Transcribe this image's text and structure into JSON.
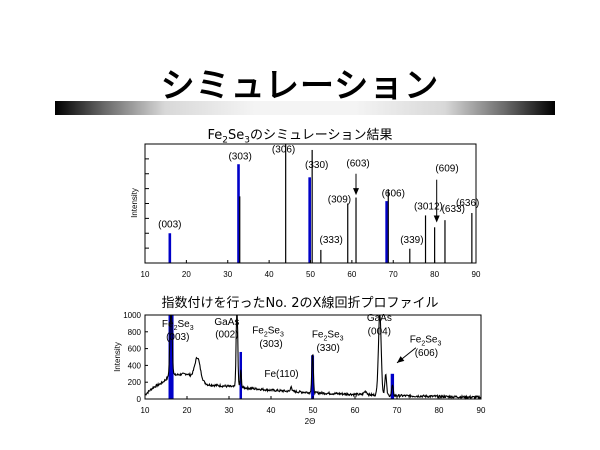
{
  "slide": {
    "title": "シミュレーション",
    "chart1_caption_pre": "Fe",
    "chart1_caption_sub1": "2",
    "chart1_caption_mid": "Se",
    "chart1_caption_sub2": "3",
    "chart1_caption_post": "のシミュレーション結果",
    "chart2_caption": "指数付けを行ったNo. 2のX線回折プロファイル"
  },
  "colors": {
    "peak_highlight": "#0000c8",
    "trace": "#000000"
  },
  "chart_data": [
    {
      "type": "bar",
      "title": "Fe2Se3のシミュレーション結果",
      "ylabel": "Intensity",
      "xlabel": "",
      "xlim": [
        10,
        90
      ],
      "x_ticks": [
        10,
        20,
        30,
        40,
        50,
        60,
        70,
        80,
        90
      ],
      "ylim": [
        0,
        100
      ],
      "grid": false,
      "peaks": [
        {
          "x": 16.0,
          "y": 25,
          "hl": true
        },
        {
          "x": 32.6,
          "y": 83,
          "hl": true
        },
        {
          "x": 32.9,
          "y": 56,
          "hl": false
        },
        {
          "x": 44.0,
          "y": 100,
          "hl": false
        },
        {
          "x": 49.8,
          "y": 72,
          "hl": true
        },
        {
          "x": 50.4,
          "y": 95,
          "hl": false
        },
        {
          "x": 52.5,
          "y": 11,
          "hl": false
        },
        {
          "x": 59.0,
          "y": 50,
          "hl": false
        },
        {
          "x": 61.0,
          "y": 55,
          "hl": false
        },
        {
          "x": 68.4,
          "y": 52,
          "hl": true
        },
        {
          "x": 68.8,
          "y": 62,
          "hl": false
        },
        {
          "x": 74.0,
          "y": 12,
          "hl": false
        },
        {
          "x": 77.8,
          "y": 40,
          "hl": false
        },
        {
          "x": 80.0,
          "y": 30,
          "hl": false
        },
        {
          "x": 82.5,
          "y": 36,
          "hl": false
        },
        {
          "x": 89.0,
          "y": 42,
          "hl": false
        }
      ],
      "annotations": [
        {
          "text": "(003)",
          "x": 16.0,
          "y": 30
        },
        {
          "text": "(303)",
          "x": 33.0,
          "y": 87
        },
        {
          "text": "(306)",
          "x": 43.5,
          "y": 93
        },
        {
          "text": "(330)",
          "x": 51.5,
          "y": 80
        },
        {
          "text": "(309)",
          "x": 57.0,
          "y": 51
        },
        {
          "text": "(603)",
          "x": 61.5,
          "y": 81
        },
        {
          "text": "(606)",
          "x": 70.0,
          "y": 56
        },
        {
          "text": "(333)",
          "x": 55.0,
          "y": 17
        },
        {
          "text": "(339)",
          "x": 74.5,
          "y": 17
        },
        {
          "text": "(3012)",
          "x": 78.5,
          "y": 45
        },
        {
          "text": "(609)",
          "x": 83.0,
          "y": 77
        },
        {
          "text": "(633)",
          "x": 84.5,
          "y": 43
        },
        {
          "text": "(636)",
          "x": 88.0,
          "y": 48
        }
      ],
      "arrows": [
        {
          "from": [
            61.0,
            75
          ],
          "to": [
            61.0,
            57
          ]
        },
        {
          "from": [
            80.5,
            70
          ],
          "to": [
            80.5,
            34
          ]
        }
      ]
    },
    {
      "type": "line",
      "title": "指数付けを行ったNo. 2のX線回折プロファイル",
      "xlabel": "2Θ",
      "ylabel": "Intensity",
      "xlim": [
        10,
        90
      ],
      "x_ticks": [
        10,
        20,
        30,
        40,
        50,
        60,
        70,
        80,
        90
      ],
      "ylim": [
        0,
        1000
      ],
      "y_ticks": [
        0,
        200,
        400,
        600,
        800,
        1000
      ],
      "grid": false,
      "background": [
        [
          10,
          50
        ],
        [
          12,
          140
        ],
        [
          14,
          190
        ],
        [
          16,
          280
        ],
        [
          20,
          300
        ],
        [
          25,
          170
        ],
        [
          30,
          150
        ],
        [
          40,
          105
        ],
        [
          50,
          75
        ],
        [
          60,
          55
        ],
        [
          70,
          40
        ],
        [
          80,
          30
        ],
        [
          90,
          20
        ]
      ],
      "peaks": [
        {
          "c": 16.2,
          "a": 850,
          "w": 0.35
        },
        {
          "c": 22.5,
          "a": 260,
          "w": 0.9
        },
        {
          "c": 31.9,
          "a": 1100,
          "w": 0.25
        },
        {
          "c": 32.8,
          "a": 200,
          "w": 0.2
        },
        {
          "c": 44.8,
          "a": 70,
          "w": 0.2
        },
        {
          "c": 49.9,
          "a": 470,
          "w": 0.25
        },
        {
          "c": 62.5,
          "a": 40,
          "w": 0.5
        },
        {
          "c": 65.9,
          "a": 1000,
          "w": 0.45
        },
        {
          "c": 67.3,
          "a": 250,
          "w": 0.3
        },
        {
          "c": 68.9,
          "a": 120,
          "w": 0.25
        }
      ],
      "highlight_peaks": [
        {
          "x": 16.2,
          "y": 1000,
          "w": 1.2
        },
        {
          "x": 32.8,
          "y": 560,
          "w": 0.5
        },
        {
          "x": 49.9,
          "y": 520,
          "w": 0.7
        },
        {
          "x": 68.9,
          "y": 300,
          "w": 0.8
        }
      ],
      "annotations": [
        {
          "parts": [
            [
              "Fe",
              ""
            ],
            [
              "2",
              "sub"
            ],
            [
              "Se",
              ""
            ],
            [
              "3",
              "sub"
            ]
          ],
          "x": 17.8,
          "y": 860
        },
        {
          "parts": [
            [
              "(003)",
              ""
            ]
          ],
          "x": 17.8,
          "y": 700
        },
        {
          "parts": [
            [
              "GaAs",
              ""
            ]
          ],
          "x": 29.5,
          "y": 880
        },
        {
          "parts": [
            [
              "(002)",
              ""
            ]
          ],
          "x": 29.5,
          "y": 730
        },
        {
          "parts": [
            [
              "Fe",
              ""
            ],
            [
              "2",
              "sub"
            ],
            [
              "Se",
              ""
            ],
            [
              "3",
              "sub"
            ]
          ],
          "x": 39.3,
          "y": 780
        },
        {
          "parts": [
            [
              "(303)",
              ""
            ]
          ],
          "x": 40.0,
          "y": 620
        },
        {
          "parts": [
            [
              "Fe(110)",
              ""
            ]
          ],
          "x": 42.5,
          "y": 260
        },
        {
          "parts": [
            [
              "Fe",
              ""
            ],
            [
              "2",
              "sub"
            ],
            [
              "Se",
              ""
            ],
            [
              "3",
              "sub"
            ]
          ],
          "x": 53.5,
          "y": 730
        },
        {
          "parts": [
            [
              "(330)",
              ""
            ]
          ],
          "x": 53.6,
          "y": 570
        },
        {
          "parts": [
            [
              "GaAs",
              ""
            ]
          ],
          "x": 65.8,
          "y": 930
        },
        {
          "parts": [
            [
              "(004)",
              ""
            ]
          ],
          "x": 65.8,
          "y": 770
        },
        {
          "parts": [
            [
              "Fe",
              ""
            ],
            [
              "2",
              "sub"
            ],
            [
              "Se",
              ""
            ],
            [
              "3",
              "sub"
            ]
          ],
          "x": 76.8,
          "y": 670
        },
        {
          "parts": [
            [
              "(606)",
              ""
            ]
          ],
          "x": 77.0,
          "y": 510
        }
      ],
      "arrows": [
        {
          "from": [
            74.5,
            610
          ],
          "to": [
            70.0,
            430
          ]
        }
      ]
    }
  ]
}
